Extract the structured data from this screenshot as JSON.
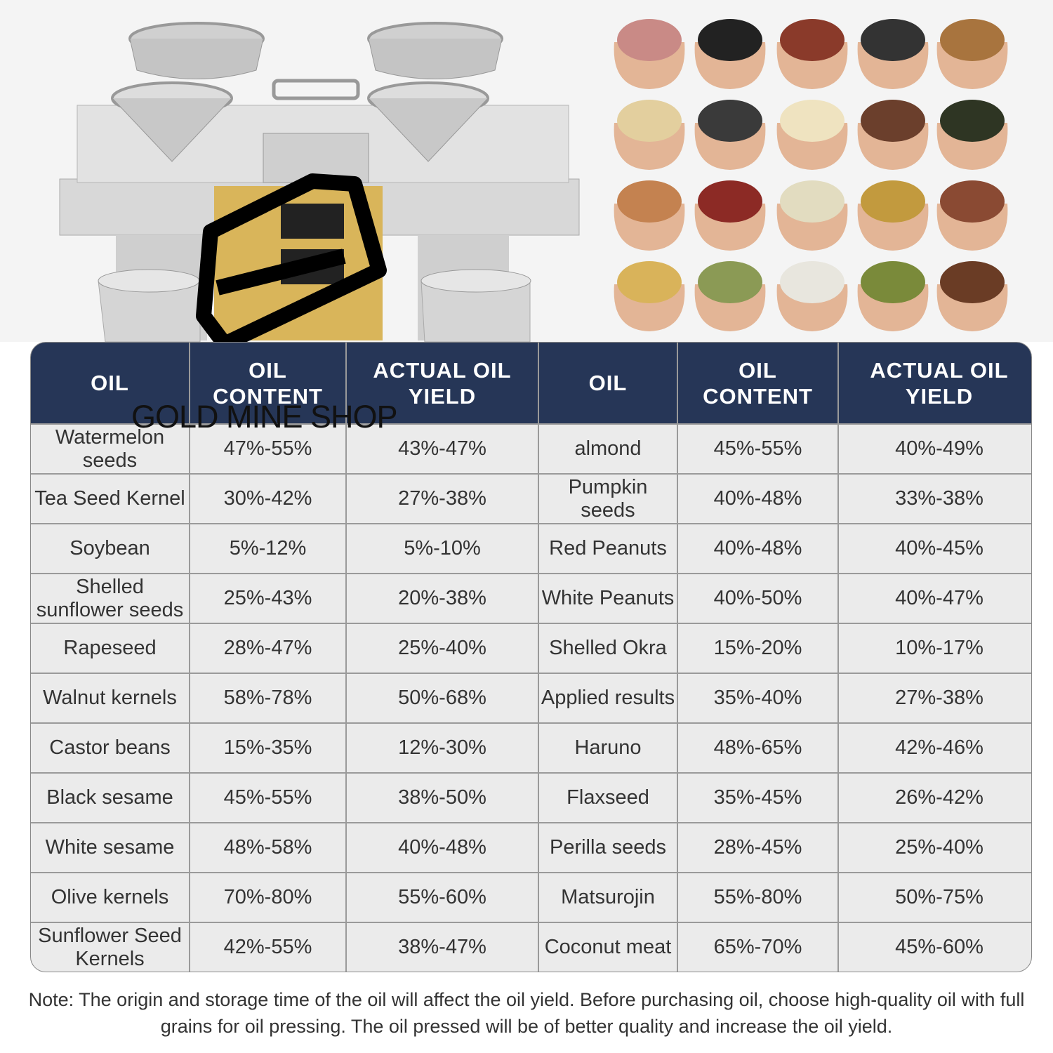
{
  "watermark": "GOLD MINE SHOP",
  "table": {
    "header": [
      "OIL",
      "OIL CONTENT",
      "ACTUAL OIL YIELD",
      "OIL",
      "OIL CONTENT",
      "ACTUAL OIL YIELD"
    ],
    "rows": [
      [
        "Watermelon seeds",
        "47%-55%",
        "43%-47%",
        "almond",
        "45%-55%",
        "40%-49%"
      ],
      [
        "Tea Seed Kernel",
        "30%-42%",
        "27%-38%",
        "Pumpkin seeds",
        "40%-48%",
        "33%-38%"
      ],
      [
        "Soybean",
        "5%-12%",
        "5%-10%",
        "Red Peanuts",
        "40%-48%",
        "40%-45%"
      ],
      [
        "Shelled sunflower seeds",
        "25%-43%",
        "20%-38%",
        "White Peanuts",
        "40%-50%",
        "40%-47%"
      ],
      [
        "Rapeseed",
        "28%-47%",
        "25%-40%",
        "Shelled Okra",
        "15%-20%",
        "10%-17%"
      ],
      [
        "Walnut kernels",
        "58%-78%",
        "50%-68%",
        "Applied results",
        "35%-40%",
        "27%-38%"
      ],
      [
        "Castor beans",
        "15%-35%",
        "12%-30%",
        "Haruno",
        "48%-65%",
        "42%-46%"
      ],
      [
        "Black sesame",
        "45%-55%",
        "38%-50%",
        "Flaxseed",
        "35%-45%",
        "26%-42%"
      ],
      [
        "White sesame",
        "48%-58%",
        "40%-48%",
        "Perilla seeds",
        "28%-45%",
        "25%-40%"
      ],
      [
        "Olive kernels",
        "70%-80%",
        "55%-60%",
        "Matsurojin",
        "55%-80%",
        "50%-75%"
      ],
      [
        "Sunflower Seed Kernels",
        "42%-55%",
        "38%-47%",
        "Coconut meat",
        "65%-70%",
        "45%-60%"
      ]
    ]
  },
  "note": "Note: The origin and storage time of the oil will affect the oil yield. Before purchasing oil, choose high-quality oil with full grains for oil pressing. The oil pressed will be of better quality and increase the oil yield."
}
